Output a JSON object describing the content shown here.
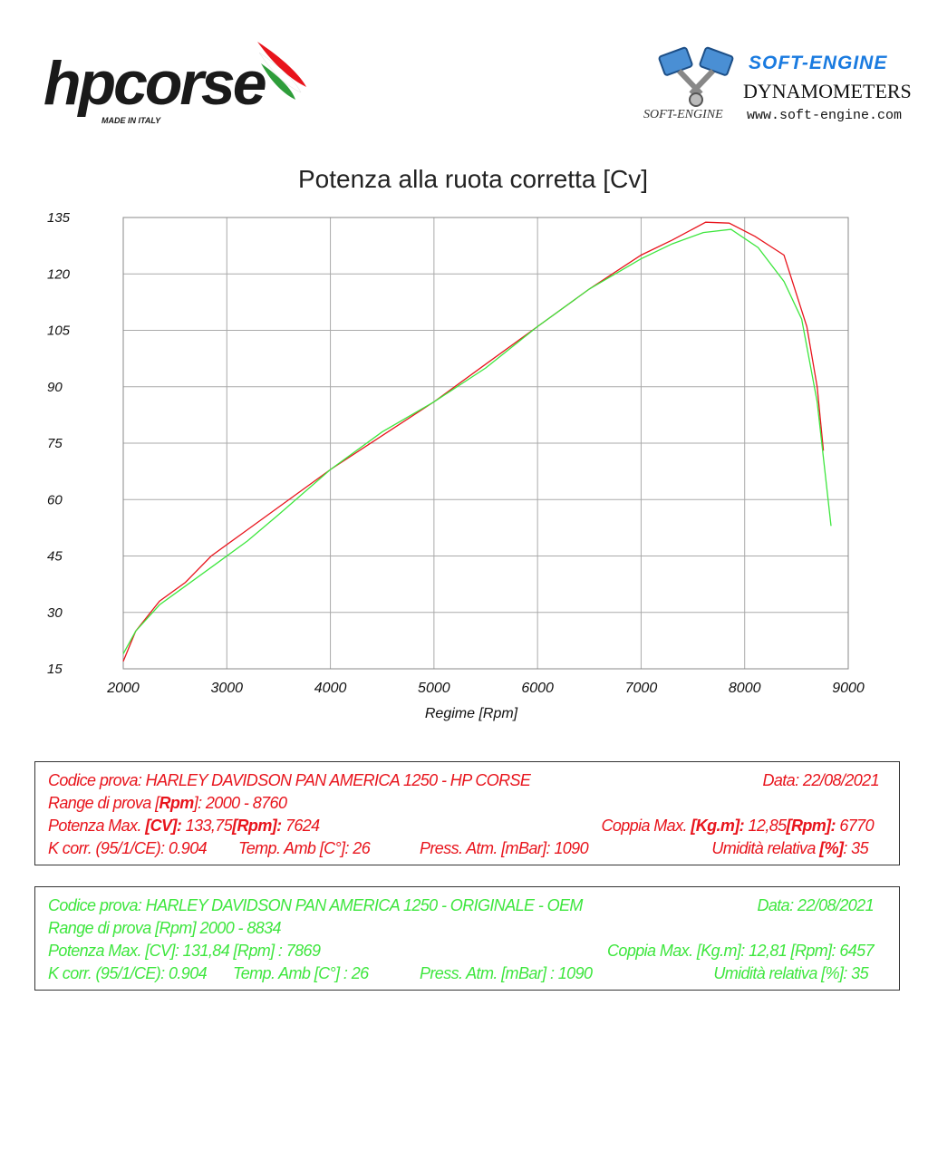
{
  "logos": {
    "hp_brand": "hpcorse",
    "hp_sub": "MADE IN ITALY",
    "se_brand": "SOFT-ENGINE",
    "se_line": "DYNAMOMETERS",
    "se_web": "www.soft-engine.com",
    "se_small": "SOFT-ENGINE"
  },
  "chart_data": {
    "type": "line",
    "title": "Potenza alla ruota corretta [Cv]",
    "xlabel": "Regime [Rpm]",
    "ylabel": "",
    "xlim": [
      2000,
      9000
    ],
    "ylim": [
      15,
      135
    ],
    "x_ticks": [
      "2000",
      "3000",
      "4000",
      "5000",
      "6000",
      "7000",
      "8000",
      "9000"
    ],
    "y_ticks": [
      "135",
      "120",
      "105",
      "90",
      "75",
      "60",
      "45",
      "30",
      "15"
    ],
    "grid": true,
    "series": [
      {
        "color": "#e8141c",
        "points": [
          [
            2000,
            17
          ],
          [
            2120,
            25
          ],
          [
            2350,
            33
          ],
          [
            2600,
            38
          ],
          [
            2850,
            45
          ],
          [
            3150,
            51
          ],
          [
            3500,
            58
          ],
          [
            4000,
            68
          ],
          [
            4500,
            77
          ],
          [
            5000,
            86
          ],
          [
            5500,
            96
          ],
          [
            6000,
            106
          ],
          [
            6500,
            116
          ],
          [
            7000,
            125
          ],
          [
            7300,
            129
          ],
          [
            7624,
            133.75
          ],
          [
            7850,
            133.5
          ],
          [
            8100,
            130
          ],
          [
            8380,
            125
          ],
          [
            8600,
            106
          ],
          [
            8700,
            90
          ],
          [
            8760,
            73
          ]
        ]
      },
      {
        "color": "#3ee63e",
        "points": [
          [
            2000,
            19
          ],
          [
            2120,
            25
          ],
          [
            2350,
            32
          ],
          [
            2600,
            37
          ],
          [
            2900,
            43
          ],
          [
            3200,
            49
          ],
          [
            3500,
            56
          ],
          [
            4000,
            68
          ],
          [
            4500,
            78
          ],
          [
            5000,
            86
          ],
          [
            5500,
            95
          ],
          [
            6000,
            106
          ],
          [
            6500,
            116
          ],
          [
            7000,
            124
          ],
          [
            7300,
            128
          ],
          [
            7600,
            131
          ],
          [
            7869,
            131.84
          ],
          [
            8130,
            127
          ],
          [
            8380,
            118
          ],
          [
            8550,
            108
          ],
          [
            8700,
            86
          ],
          [
            8834,
            53
          ]
        ]
      }
    ]
  },
  "box_red": {
    "code_label": "Codice prova:",
    "code_value": "HARLEY DAVIDSON  PAN AMERICA 1250 - HP CORSE",
    "date_label": "Data:",
    "date_value": "22/08/2021",
    "range_label": "Range di prova  [",
    "range_unit": "Rpm",
    "range_value": "]: 2000 - 8760",
    "pmax_label": "Potenza Max.",
    "pmax_unit": "[CV]:",
    "pmax_value": "133,75",
    "pmax_rpm_unit": "[Rpm]:",
    "pmax_rpm": "7624",
    "cmax_label": "Coppia Max.",
    "cmax_unit": "[Kg.m]:",
    "cmax_value": "12,85",
    "cmax_rpm_unit": "[Rpm]:",
    "cmax_rpm": "6770",
    "kcorr": "K corr. (95/1/CE): 0.904",
    "temp": "Temp. Amb  [C°]: 26",
    "press": "Press. Atm.  [mBar]: 1090",
    "umid_label": "Umidità relativa",
    "umid_unit": "[%]",
    "umid_value": ": 35"
  },
  "box_green": {
    "code_label": "Codice prova:",
    "code_value": "HARLEY DAVIDSON  PAN AMERICA 1250 - ORIGINALE - OEM",
    "date_label": "Data:",
    "date_value": "22/08/2021",
    "range": "Range di prova [Rpm] 2000 - 8834",
    "pmax": "Potenza Max. [CV]:  131,84  [Rpm] : 7869",
    "cmax": "Coppia Max.  [Kg.m]:  12,81  [Rpm]:  6457",
    "kcorr": "K corr. (95/1/CE): 0.904",
    "temp": "Temp. Amb [C°] : 26",
    "press": "Press. Atm. [mBar] : 1090",
    "umid": "Umidità relativa [%]: 35"
  }
}
